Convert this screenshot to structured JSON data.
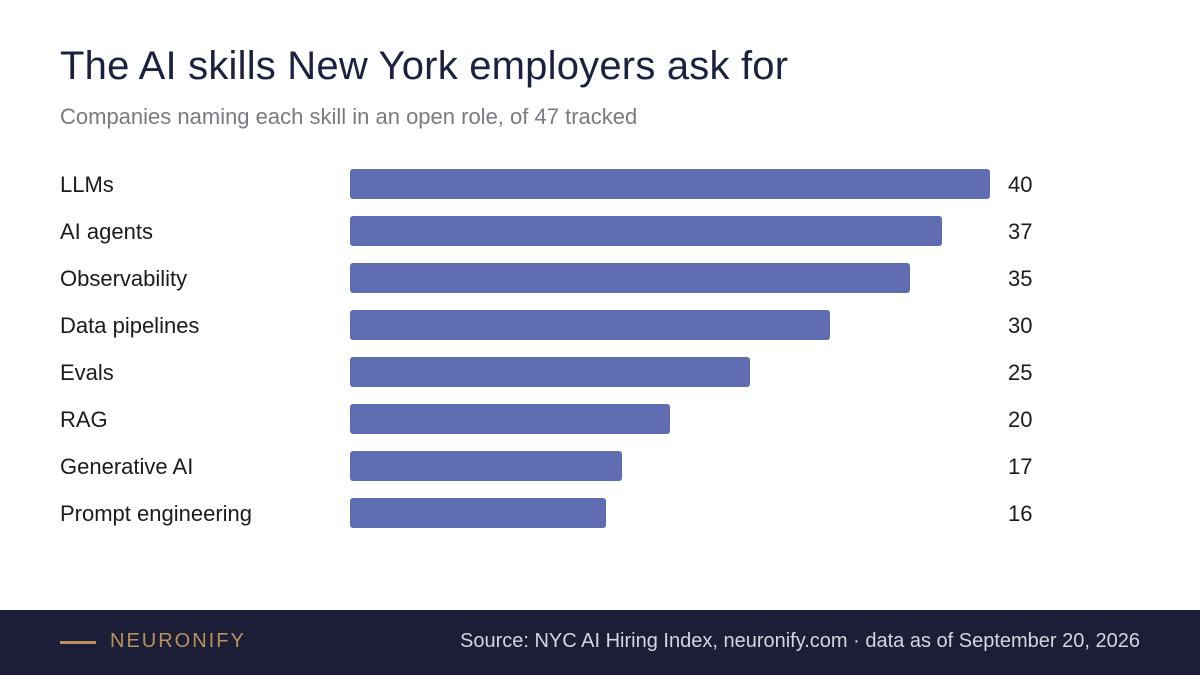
{
  "header": {
    "title": "The AI skills New York employers ask for",
    "subtitle": "Companies naming each skill in an open role, of 47 tracked"
  },
  "colors": {
    "bar": "#5e6cb1",
    "label": "#1b1b1f",
    "value": "#1b1b1f"
  },
  "chart_data": {
    "type": "bar",
    "orientation": "horizontal",
    "categories": [
      "LLMs",
      "AI agents",
      "Observability",
      "Data pipelines",
      "Evals",
      "RAG",
      "Generative AI",
      "Prompt engineering"
    ],
    "values": [
      40,
      37,
      35,
      30,
      25,
      20,
      17,
      16
    ],
    "title": "The AI skills New York employers ask for",
    "subtitle": "Companies naming each skill in an open role, of 47 tracked",
    "xlim": [
      0,
      40
    ],
    "grid": false,
    "data_labels": true
  },
  "footer": {
    "brand": "NEURONIFY",
    "source": "Source: NYC AI Hiring Index, neuronify.com · data as of September 20, 2026"
  }
}
